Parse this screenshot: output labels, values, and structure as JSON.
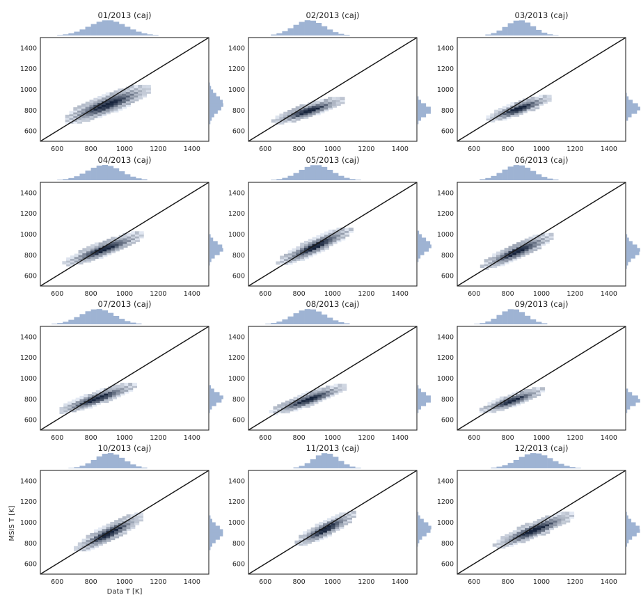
{
  "chart_data": {
    "type": "hexbin-joint-grid",
    "xlabel": "Data T [K]",
    "ylabel": "MSIS T [K]",
    "xlim": [
      500,
      1500
    ],
    "ylim": [
      500,
      1500
    ],
    "xticks": [
      600,
      800,
      1000,
      1200,
      1400
    ],
    "yticks": [
      600,
      800,
      1000,
      1200,
      1400
    ],
    "reference_line": "y = x",
    "colors": {
      "marginal": "#9eb3d3",
      "dense": "#15223a",
      "sparse": "#e4eaf4",
      "line": "#1a1a1a"
    },
    "panels": [
      {
        "title": "01/2013 (caj)",
        "x_center": 900,
        "y_center": 860,
        "x_spread": 110,
        "y_spread": 75,
        "slope": 0.6
      },
      {
        "title": "02/2013 (caj)",
        "x_center": 860,
        "y_center": 800,
        "x_spread": 90,
        "y_spread": 50,
        "slope": 0.5
      },
      {
        "title": "03/2013 (caj)",
        "x_center": 870,
        "y_center": 820,
        "x_spread": 80,
        "y_spread": 50,
        "slope": 0.55
      },
      {
        "title": "04/2013 (caj)",
        "x_center": 880,
        "y_center": 860,
        "x_spread": 100,
        "y_spread": 55,
        "slope": 0.6
      },
      {
        "title": "05/2013 (caj)",
        "x_center": 900,
        "y_center": 890,
        "x_spread": 95,
        "y_spread": 60,
        "slope": 0.75
      },
      {
        "title": "06/2013 (caj)",
        "x_center": 860,
        "y_center": 840,
        "x_spread": 90,
        "y_spread": 60,
        "slope": 0.7
      },
      {
        "title": "07/2013 (caj)",
        "x_center": 840,
        "y_center": 810,
        "x_spread": 100,
        "y_spread": 50,
        "slope": 0.55
      },
      {
        "title": "08/2013 (caj)",
        "x_center": 860,
        "y_center": 800,
        "x_spread": 95,
        "y_spread": 50,
        "slope": 0.55
      },
      {
        "title": "09/2013 (caj)",
        "x_center": 830,
        "y_center": 790,
        "x_spread": 80,
        "y_spread": 45,
        "slope": 0.55
      },
      {
        "title": "10/2013 (caj)",
        "x_center": 910,
        "y_center": 900,
        "x_spread": 85,
        "y_spread": 65,
        "slope": 0.8
      },
      {
        "title": "11/2013 (caj)",
        "x_center": 960,
        "y_center": 940,
        "x_spread": 75,
        "y_spread": 60,
        "slope": 0.8
      },
      {
        "title": "12/2013 (caj)",
        "x_center": 960,
        "y_center": 930,
        "x_spread": 100,
        "y_spread": 60,
        "slope": 0.65
      }
    ]
  }
}
